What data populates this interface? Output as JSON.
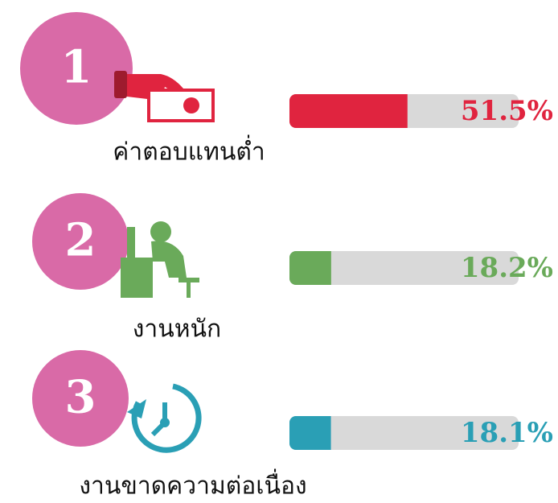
{
  "chart_data": {
    "type": "bar",
    "orientation": "horizontal",
    "ranks": [
      1,
      2,
      3
    ],
    "categories": [
      "ค่าตอบแทนต่ำ",
      "งานหนัก",
      "งานขาดความต่อเนื่อง"
    ],
    "values": [
      51.5,
      18.2,
      18.1
    ],
    "value_labels": [
      "51.5%",
      "18.2%",
      "18.1%"
    ],
    "colors": [
      "#e0243f",
      "#6aaa5a",
      "#2a9fb5"
    ],
    "xlim": [
      0,
      100
    ]
  }
}
